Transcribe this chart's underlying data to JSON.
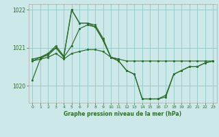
{
  "bg_color": "#cce8e8",
  "grid_color": "#99cccc",
  "line_color": "#2d6e2d",
  "marker_color": "#2d6e2d",
  "title": "Graphe pression niveau de la mer (hPa)",
  "xlim": [
    -0.5,
    23.5
  ],
  "ylim": [
    1019.55,
    1022.15
  ],
  "yticks": [
    1020,
    1021,
    1022
  ],
  "xticks": [
    0,
    1,
    2,
    3,
    4,
    5,
    6,
    7,
    8,
    9,
    10,
    11,
    12,
    13,
    14,
    15,
    16,
    17,
    18,
    19,
    20,
    21,
    22,
    23
  ],
  "series1": {
    "x": [
      0,
      1,
      2,
      3,
      4,
      5,
      6,
      7,
      8,
      9,
      10,
      11
    ],
    "y": [
      1020.7,
      1020.75,
      1020.8,
      1021.0,
      1020.75,
      1021.05,
      1021.5,
      1021.6,
      1021.55,
      1021.2,
      1020.75,
      1020.7
    ]
  },
  "series2": {
    "x": [
      0,
      1,
      2,
      3,
      4,
      5,
      6,
      7,
      8,
      9,
      10,
      11,
      12,
      13,
      14,
      15,
      16,
      17,
      18,
      19,
      20,
      21,
      22,
      23
    ],
    "y": [
      1020.65,
      1020.7,
      1020.75,
      1020.85,
      1020.7,
      1020.85,
      1020.9,
      1020.95,
      1020.95,
      1020.9,
      1020.75,
      1020.7,
      1020.65,
      1020.65,
      1020.65,
      1020.65,
      1020.65,
      1020.65,
      1020.65,
      1020.65,
      1020.65,
      1020.65,
      1020.65,
      1020.65
    ]
  },
  "series3": {
    "x": [
      0,
      1,
      2,
      3,
      4,
      5,
      6,
      7,
      8,
      9,
      10,
      11,
      12,
      13,
      14,
      15,
      16,
      17,
      18,
      19,
      20,
      21,
      22,
      23
    ],
    "y": [
      1020.65,
      1020.75,
      1020.85,
      1021.05,
      1020.78,
      1022.0,
      1021.65,
      1021.65,
      1021.6,
      1021.25,
      1020.75,
      1020.65,
      1020.4,
      1020.3,
      1019.65,
      1019.65,
      1019.65,
      1019.7,
      1020.3,
      1020.4,
      1020.5,
      1020.5,
      1020.6,
      1020.65
    ]
  },
  "series4": {
    "x": [
      0,
      1,
      2,
      3,
      4,
      5,
      6,
      7,
      8,
      9,
      10,
      11,
      12,
      13,
      14,
      15,
      16,
      17,
      18,
      19,
      20,
      21,
      22,
      23
    ],
    "y": [
      1020.15,
      1020.7,
      1020.85,
      1021.0,
      1020.75,
      1022.0,
      1021.65,
      1021.65,
      1021.55,
      1021.2,
      1020.75,
      1020.65,
      1020.4,
      1020.3,
      1019.65,
      1019.65,
      1019.65,
      1019.75,
      1020.3,
      1020.4,
      1020.5,
      1020.5,
      1020.6,
      1020.65
    ]
  }
}
